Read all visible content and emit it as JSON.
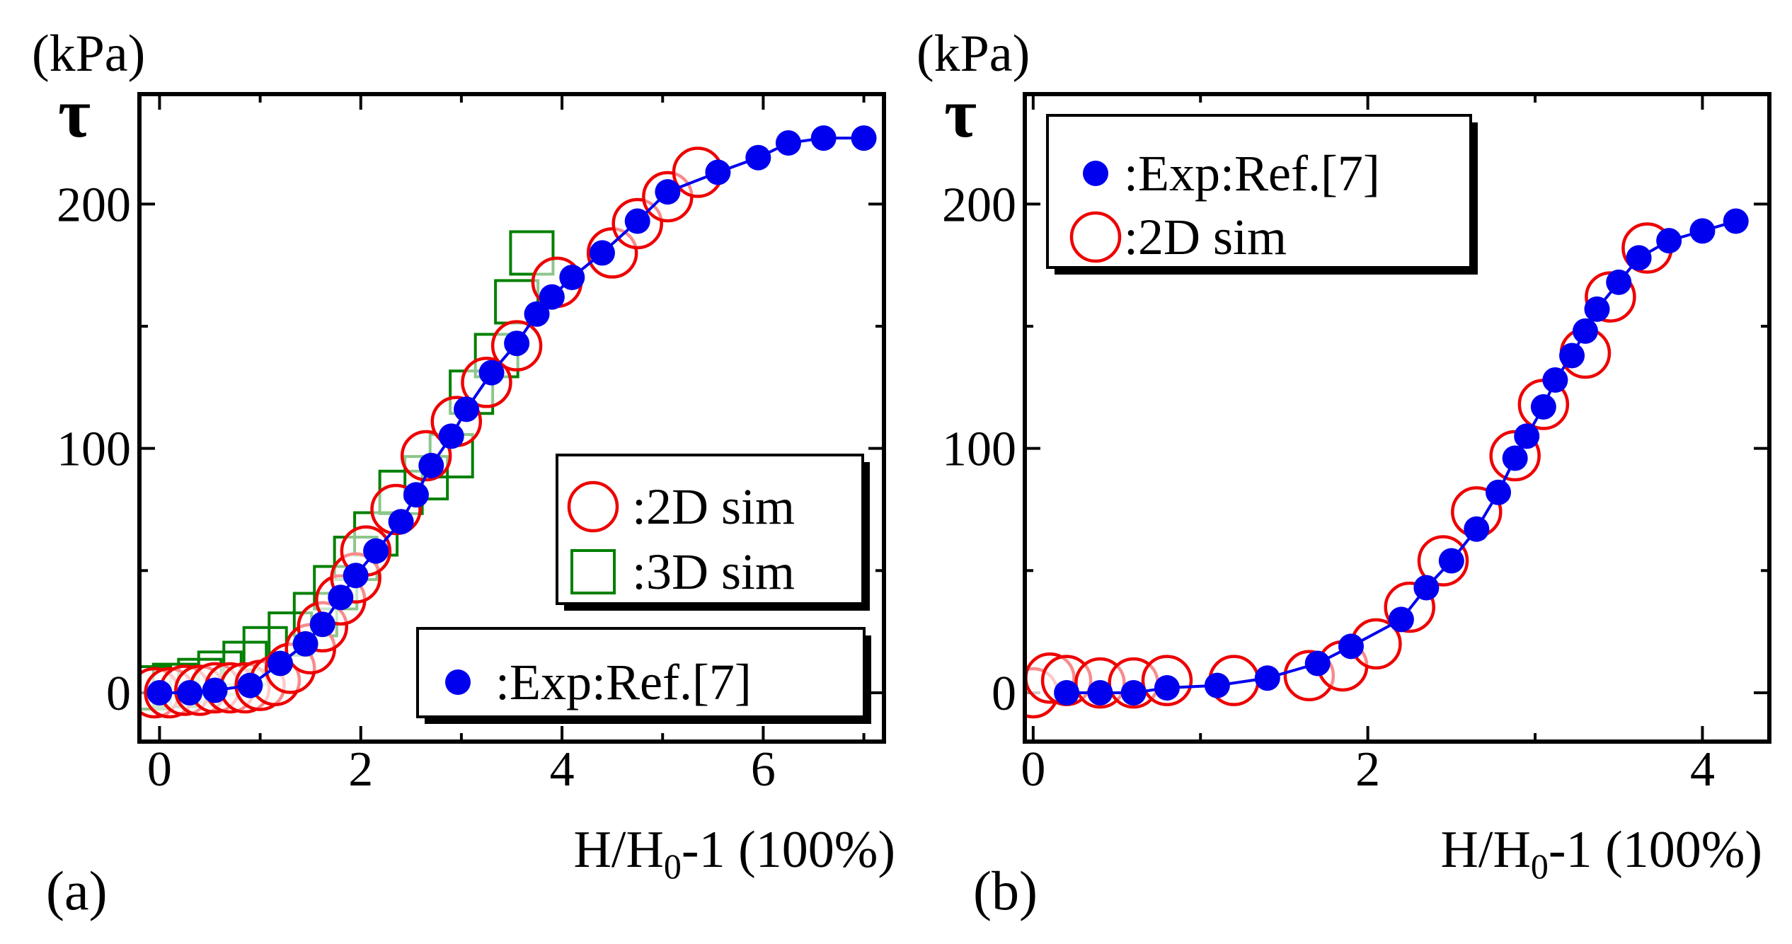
{
  "chart_data": [
    {
      "type": "scatter",
      "panel_label": "(a)",
      "unit_label": "(kPa)",
      "ylabel": "τ",
      "xlabel_parts": [
        "H/H",
        "0",
        "-1 (100%)"
      ],
      "xlim": [
        -0.2,
        7.2
      ],
      "ylim": [
        -20,
        245
      ],
      "xticks": [
        0,
        2,
        4,
        6
      ],
      "yticks": [
        0,
        100,
        200
      ],
      "ytick_labels": [
        "0",
        "100",
        "200"
      ],
      "legends": [
        {
          "name": "legend-sim",
          "entries": [
            {
              "marker": "open-circle",
              "label": ":2D sim"
            },
            {
              "marker": "open-square",
              "label": ":3D sim"
            }
          ]
        },
        {
          "name": "legend-exp",
          "entries": [
            {
              "marker": "filled-circle",
              "label": ":Exp:Ref.[7]"
            }
          ]
        }
      ],
      "series": [
        {
          "name": "Exp:Ref.[7]",
          "marker": "filled-circle",
          "color": "#0000ee",
          "line": true,
          "x": [
            0.0,
            0.3,
            0.55,
            0.9,
            1.2,
            1.45,
            1.62,
            1.8,
            1.95,
            2.15,
            2.4,
            2.55,
            2.7,
            2.9,
            3.05,
            3.3,
            3.55,
            3.75,
            3.9,
            4.1,
            4.4,
            4.75,
            5.05,
            5.55,
            5.95,
            6.25,
            6.6,
            7.0
          ],
          "y": [
            0,
            0,
            1,
            3,
            12,
            20,
            28,
            39,
            48,
            58,
            70,
            81,
            93,
            105,
            116,
            131,
            143,
            155,
            162,
            170,
            180,
            193,
            205,
            213,
            219,
            225,
            227,
            227
          ]
        },
        {
          "name": "2D sim",
          "marker": "open-circle",
          "color": "#ee0000",
          "line": false,
          "x": [
            -0.05,
            0.1,
            0.25,
            0.4,
            0.55,
            0.7,
            0.85,
            1.0,
            1.15,
            1.3,
            1.5,
            1.62,
            1.8,
            1.95,
            2.05,
            2.35,
            2.65,
            2.95,
            3.25,
            3.55,
            3.95,
            4.5,
            4.75,
            5.05,
            5.35
          ],
          "y": [
            0,
            0,
            1,
            1,
            2,
            2,
            2,
            3,
            5,
            10,
            18,
            27,
            38,
            47,
            58,
            75,
            97,
            111,
            127,
            142,
            168,
            180,
            192,
            203,
            213
          ]
        },
        {
          "name": "3D sim",
          "marker": "open-square",
          "color": "#008000",
          "line": false,
          "x": [
            -0.1,
            0.15,
            0.4,
            0.6,
            0.85,
            1.05,
            1.3,
            1.55,
            1.75,
            1.95,
            2.15,
            2.4,
            2.65,
            2.9,
            3.1,
            3.35,
            3.55,
            3.7
          ],
          "y": [
            2,
            3,
            5,
            8,
            12,
            18,
            24,
            32,
            43,
            55,
            65,
            82,
            88,
            97,
            123,
            138,
            160,
            180
          ]
        }
      ]
    },
    {
      "type": "scatter",
      "panel_label": "(b)",
      "unit_label": "(kPa)",
      "ylabel": "τ",
      "xlabel_parts": [
        "H/H",
        "0",
        "-1 (100%)"
      ],
      "xlim": [
        -0.05,
        4.4
      ],
      "ylim": [
        -20,
        245
      ],
      "xticks": [
        0,
        2,
        4
      ],
      "yticks": [
        0,
        100,
        200
      ],
      "ytick_labels": [
        "0",
        "100",
        "200"
      ],
      "legends": [
        {
          "name": "legend-b",
          "entries": [
            {
              "marker": "filled-circle",
              "label": ":Exp:Ref.[7]"
            },
            {
              "marker": "open-circle",
              "label": ":2D sim"
            }
          ]
        }
      ],
      "series": [
        {
          "name": "Exp:Ref.[7]",
          "marker": "filled-circle",
          "color": "#0000ee",
          "line": true,
          "x": [
            0.2,
            0.4,
            0.6,
            0.8,
            1.1,
            1.4,
            1.7,
            1.9,
            2.2,
            2.35,
            2.5,
            2.65,
            2.78,
            2.88,
            2.95,
            3.05,
            3.12,
            3.22,
            3.3,
            3.37,
            3.5,
            3.62,
            3.8,
            4.0,
            4.2
          ],
          "y": [
            0,
            0,
            0,
            2,
            3,
            6,
            12,
            19,
            30,
            43,
            54,
            67,
            82,
            96,
            105,
            117,
            128,
            138,
            148,
            157,
            168,
            178,
            185,
            189,
            193
          ]
        },
        {
          "name": "2D sim",
          "marker": "open-circle",
          "color": "#ee0000",
          "line": false,
          "x": [
            0.0,
            0.1,
            0.2,
            0.4,
            0.6,
            0.8,
            1.2,
            1.65,
            1.85,
            2.05,
            2.25,
            2.45,
            2.65,
            2.88,
            3.05,
            3.3,
            3.45,
            3.67
          ],
          "y": [
            0,
            6,
            5,
            4,
            4,
            5,
            5,
            7,
            11,
            20,
            35,
            54,
            74,
            97,
            118,
            139,
            162,
            182
          ]
        }
      ]
    }
  ]
}
